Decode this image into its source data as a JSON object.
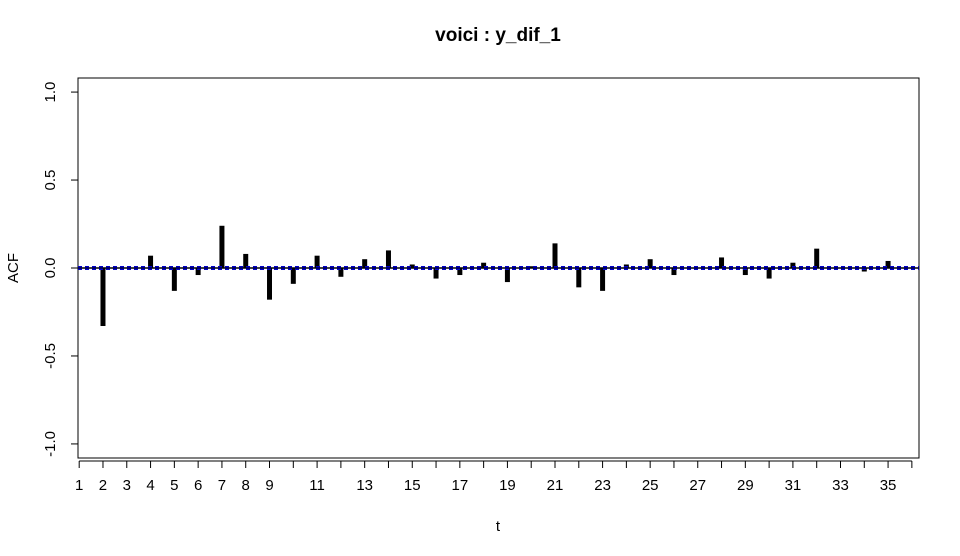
{
  "chart_data": {
    "type": "bar",
    "title": "voici : y_dif_1",
    "xlabel": "t",
    "ylabel": "ACF",
    "xlim": [
      0.95,
      36.3
    ],
    "ylim": [
      -1.08,
      1.08
    ],
    "x_ticks": [
      1,
      2,
      3,
      4,
      5,
      6,
      7,
      8,
      9,
      10,
      11,
      12,
      13,
      14,
      15,
      16,
      17,
      18,
      19,
      20,
      21,
      22,
      23,
      24,
      25,
      26,
      27,
      28,
      29,
      30,
      31,
      32,
      33,
      34,
      35,
      36
    ],
    "x_tick_labels": [
      "1",
      "2",
      "3",
      "4",
      "5",
      "6",
      "7",
      "8",
      "9",
      "11",
      "13",
      "15",
      "17",
      "19",
      "21",
      "23",
      "25",
      "27",
      "29",
      "31",
      "33",
      "35"
    ],
    "y_ticks": [
      -1.0,
      -0.5,
      0.0,
      0.5,
      1.0
    ],
    "y_tick_labels": [
      "-1.0",
      "-0.5",
      "0.0",
      "0.5",
      "1.0"
    ],
    "lags": [
      1,
      2,
      3,
      4,
      5,
      6,
      7,
      8,
      9,
      10,
      11,
      12,
      13,
      14,
      15,
      16,
      17,
      18,
      19,
      20,
      21,
      22,
      23,
      24,
      25,
      26,
      27,
      28,
      29,
      30,
      31,
      32,
      33,
      34,
      35
    ],
    "values": [
      0.0,
      -0.33,
      0.0,
      0.07,
      -0.13,
      -0.04,
      0.24,
      0.08,
      -0.18,
      -0.09,
      0.07,
      -0.05,
      0.05,
      0.1,
      0.02,
      -0.06,
      -0.04,
      0.03,
      -0.08,
      0.01,
      0.14,
      -0.11,
      -0.13,
      0.02,
      0.05,
      -0.04,
      0.0,
      0.06,
      -0.04,
      -0.06,
      0.03,
      0.11,
      0.0,
      -0.02,
      0.04
    ],
    "confidence_band": [
      -0.007,
      0.007
    ],
    "colors": {
      "bars": "#000000",
      "band": "#0000cc",
      "axes": "#000000"
    },
    "grid": false
  }
}
